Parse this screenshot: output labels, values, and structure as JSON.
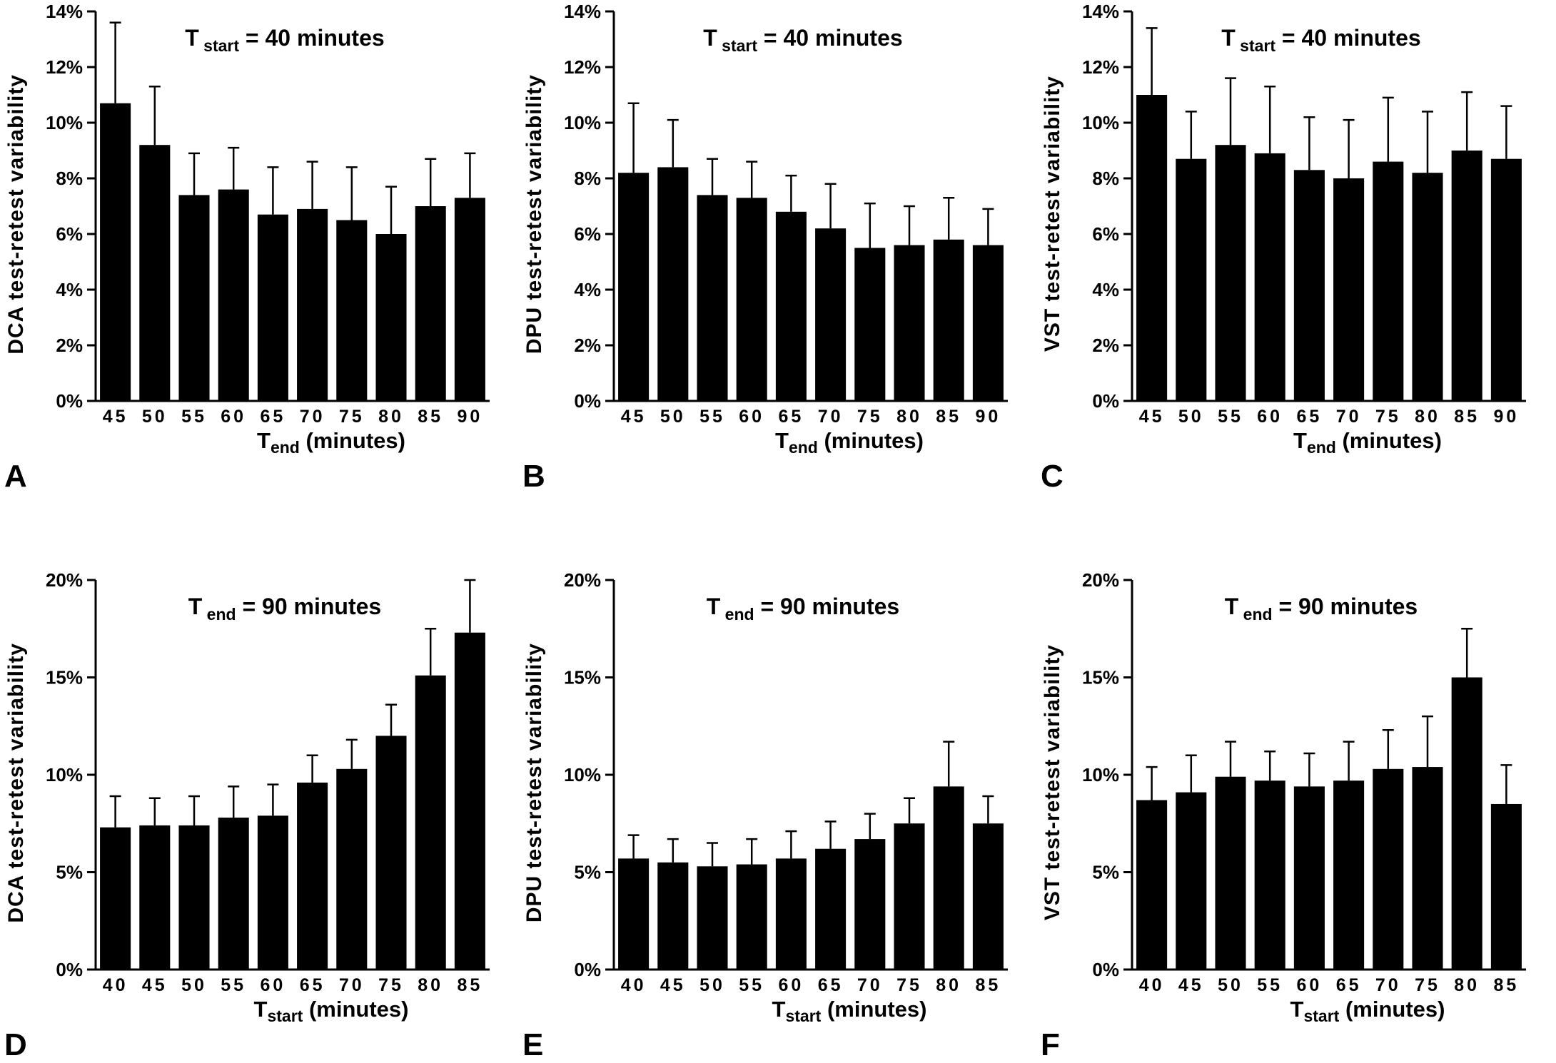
{
  "figure": {
    "background": "#ffffff",
    "ink": "#000000"
  },
  "chart_data": [
    {
      "type": "bar",
      "letter": "A",
      "row": "top",
      "ylabel": "DCA test-retest variability",
      "annotation": {
        "main": "T",
        "sub": "start",
        "rest": "= 40 minutes"
      },
      "xlabel": {
        "main": "T",
        "sub": "end",
        "rest": "(minutes)"
      },
      "categories": [
        "45",
        "50",
        "55",
        "60",
        "65",
        "70",
        "75",
        "80",
        "85",
        "90"
      ],
      "values": [
        10.7,
        9.2,
        7.4,
        7.6,
        6.7,
        6.9,
        6.5,
        6.0,
        7.0,
        7.3
      ],
      "error_tops": [
        13.6,
        11.3,
        8.9,
        9.1,
        8.4,
        8.6,
        8.4,
        7.7,
        8.7,
        8.9
      ],
      "ylim": [
        0,
        14
      ],
      "yticks": [
        "0%",
        "2%",
        "4%",
        "6%",
        "8%",
        "10%",
        "12%",
        "14%"
      ],
      "legend": "none",
      "grid": "off"
    },
    {
      "type": "bar",
      "letter": "B",
      "row": "top",
      "ylabel": "DPU test-retest variability",
      "annotation": {
        "main": "T",
        "sub": "start",
        "rest": "= 40 minutes"
      },
      "xlabel": {
        "main": "T",
        "sub": "end",
        "rest": "(minutes)"
      },
      "categories": [
        "45",
        "50",
        "55",
        "60",
        "65",
        "70",
        "75",
        "80",
        "85",
        "90"
      ],
      "values": [
        8.2,
        8.4,
        7.4,
        7.3,
        6.8,
        6.2,
        5.5,
        5.6,
        5.8,
        5.6
      ],
      "error_tops": [
        10.7,
        10.1,
        8.7,
        8.6,
        8.1,
        7.8,
        7.1,
        7.0,
        7.3,
        6.9
      ],
      "ylim": [
        0,
        14
      ],
      "yticks": [
        "0%",
        "2%",
        "4%",
        "6%",
        "8%",
        "10%",
        "12%",
        "14%"
      ],
      "legend": "none",
      "grid": "off"
    },
    {
      "type": "bar",
      "letter": "C",
      "row": "top",
      "ylabel": "VST test-retest variability",
      "annotation": {
        "main": "T",
        "sub": "start",
        "rest": "= 40 minutes"
      },
      "xlabel": {
        "main": "T",
        "sub": "end",
        "rest": "(minutes)"
      },
      "categories": [
        "45",
        "50",
        "55",
        "60",
        "65",
        "70",
        "75",
        "80",
        "85",
        "90"
      ],
      "values": [
        11.0,
        8.7,
        9.2,
        8.9,
        8.3,
        8.0,
        8.6,
        8.2,
        9.0,
        8.7
      ],
      "error_tops": [
        13.4,
        10.4,
        11.6,
        11.3,
        10.2,
        10.1,
        10.9,
        10.4,
        11.1,
        10.6
      ],
      "ylim": [
        0,
        14
      ],
      "yticks": [
        "0%",
        "2%",
        "4%",
        "6%",
        "8%",
        "10%",
        "12%",
        "14%"
      ],
      "legend": "none",
      "grid": "off"
    },
    {
      "type": "bar",
      "letter": "D",
      "row": "bottom",
      "ylabel": "DCA test-retest variability",
      "annotation": {
        "main": "T",
        "sub": "end",
        "rest": "= 90 minutes"
      },
      "xlabel": {
        "main": "T",
        "sub": "start",
        "rest": "(minutes)"
      },
      "categories": [
        "40",
        "45",
        "50",
        "55",
        "60",
        "65",
        "70",
        "75",
        "80",
        "85"
      ],
      "values": [
        7.3,
        7.4,
        7.4,
        7.8,
        7.9,
        9.6,
        10.3,
        12.0,
        15.1,
        17.3
      ],
      "error_tops": [
        8.9,
        8.8,
        8.9,
        9.4,
        9.5,
        11.0,
        11.8,
        13.6,
        17.5,
        20.3
      ],
      "ylim": [
        0,
        20
      ],
      "yticks": [
        "0%",
        "5%",
        "10%",
        "15%",
        "20%"
      ],
      "legend": "none",
      "grid": "off"
    },
    {
      "type": "bar",
      "letter": "E",
      "row": "bottom",
      "ylabel": "DPU test-retest variability",
      "annotation": {
        "main": "T",
        "sub": "end",
        "rest": "= 90 minutes"
      },
      "xlabel": {
        "main": "T",
        "sub": "start",
        "rest": "(minutes)"
      },
      "categories": [
        "40",
        "45",
        "50",
        "55",
        "60",
        "65",
        "70",
        "75",
        "80",
        "85"
      ],
      "values": [
        5.7,
        5.5,
        5.3,
        5.4,
        5.7,
        6.2,
        6.7,
        7.5,
        9.4,
        7.5
      ],
      "error_tops": [
        6.9,
        6.7,
        6.5,
        6.7,
        7.1,
        7.6,
        8.0,
        8.8,
        11.7,
        8.9
      ],
      "ylim": [
        0,
        20
      ],
      "yticks": [
        "0%",
        "5%",
        "10%",
        "15%",
        "20%"
      ],
      "legend": "none",
      "grid": "off"
    },
    {
      "type": "bar",
      "letter": "F",
      "row": "bottom",
      "ylabel": "VST test-retest variability",
      "annotation": {
        "main": "T",
        "sub": "end",
        "rest": "= 90 minutes"
      },
      "xlabel": {
        "main": "T",
        "sub": "start",
        "rest": "(minutes)"
      },
      "categories": [
        "40",
        "45",
        "50",
        "55",
        "60",
        "65",
        "70",
        "75",
        "80",
        "85"
      ],
      "values": [
        8.7,
        9.1,
        9.9,
        9.7,
        9.4,
        9.7,
        10.3,
        10.4,
        15.0,
        8.5
      ],
      "error_tops": [
        10.4,
        11.0,
        11.7,
        11.2,
        11.1,
        11.7,
        12.3,
        13.0,
        17.5,
        10.5
      ],
      "ylim": [
        0,
        20
      ],
      "yticks": [
        "0%",
        "5%",
        "10%",
        "15%",
        "20%"
      ],
      "legend": "none",
      "grid": "off"
    }
  ]
}
